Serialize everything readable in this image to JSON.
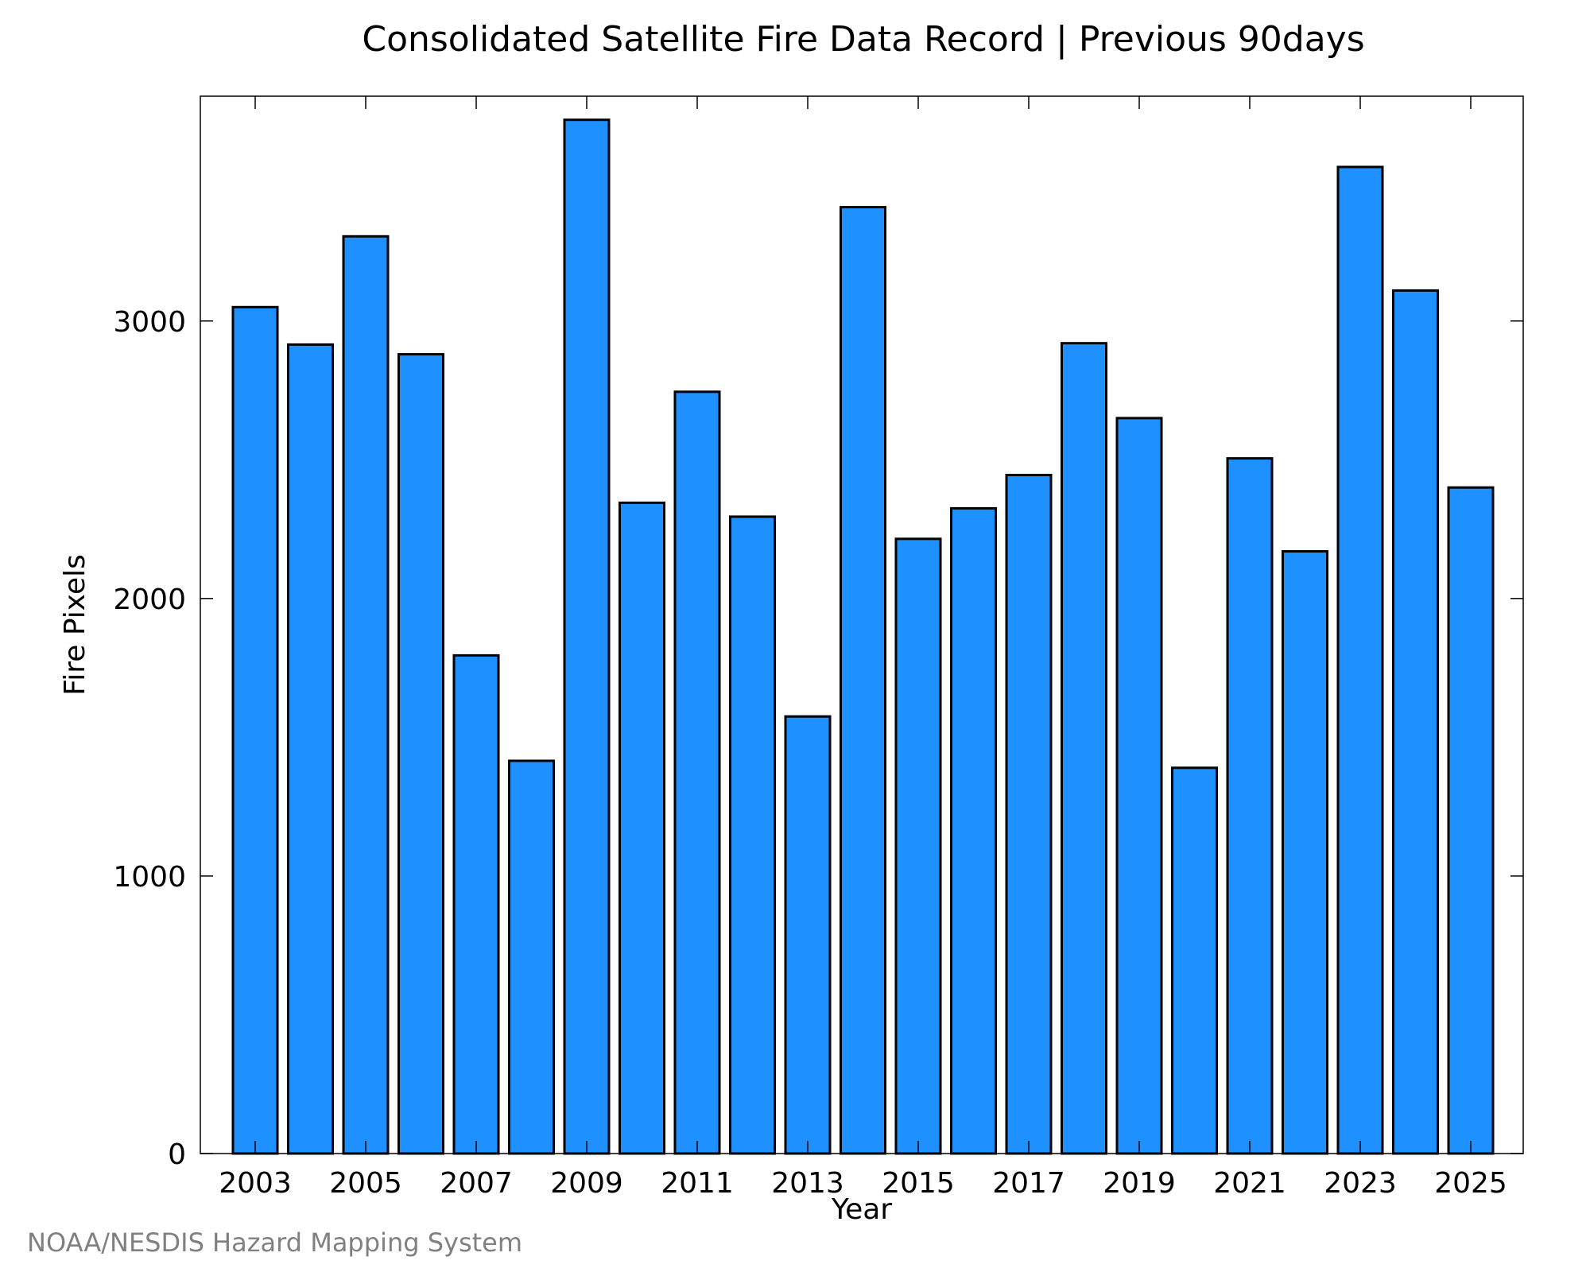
{
  "chart_data": {
    "type": "bar",
    "title": "Consolidated Satellite Fire Data Record | Previous 90days",
    "xlabel": "Year",
    "ylabel": "Fire Pixels",
    "categories": [
      "2003",
      "2004",
      "2005",
      "2006",
      "2007",
      "2008",
      "2009",
      "2010",
      "2011",
      "2012",
      "2013",
      "2014",
      "2015",
      "2016",
      "2017",
      "2018",
      "2019",
      "2020",
      "2021",
      "2022",
      "2023",
      "2024",
      "2025"
    ],
    "values": [
      3050,
      2915,
      3305,
      2880,
      1795,
      1415,
      3725,
      2345,
      2745,
      2295,
      1575,
      3410,
      2215,
      2325,
      2445,
      2920,
      2650,
      1390,
      2505,
      2170,
      3555,
      3110,
      2400
    ],
    "x_tick_labels": [
      "2003",
      "2005",
      "2007",
      "2009",
      "2011",
      "2013",
      "2015",
      "2017",
      "2019",
      "2021",
      "2023",
      "2025"
    ],
    "y_ticks": [
      0,
      1000,
      2000,
      3000
    ],
    "ylim": [
      0,
      3810
    ],
    "grid": false,
    "legend": "none",
    "bar_color": "#1e90ff",
    "bar_edge_color": "#000000"
  },
  "credit": "NOAA/NESDIS Hazard Mapping System"
}
